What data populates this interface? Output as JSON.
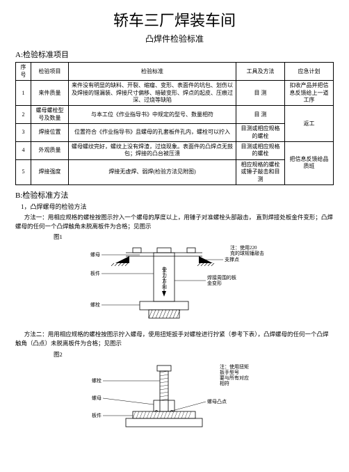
{
  "title_main": "轿车三厂焊装车间",
  "title_sub": "凸焊件检验标准",
  "section_a_header": "A:检验标准项目",
  "table": {
    "headers": [
      "序号",
      "检验项目",
      "检验标准",
      "工具及方法",
      "应急计划"
    ],
    "rows": [
      {
        "seq": "1",
        "item": "来件质量",
        "std": "来件没有明显的缺料、开裂、缩瘤、变形、表面件的坑包、划伤以及焊接的错漏装、焊接尺寸偏移、暗破变形、焊点的起皮、压痕过深、过烧等缺陷",
        "tool": "目  测",
        "plan": "扣收产品并把信息反馈给上一道工序"
      },
      {
        "seq": "2",
        "item": "螺母螺栓型号及数量",
        "std": "与本工位《作业指导书》中规定的型号、数量相符",
        "tool": "目  测",
        "plan": "返工"
      },
      {
        "seq": "3",
        "item": "焊接位置",
        "std": "位置符合《作业指导书》且螺母的孔套板件孔内，螺栓可以拧入",
        "tool": "目测或相应规格的螺栓",
        "plan": ""
      },
      {
        "seq": "4",
        "item": "外观质量",
        "std": "螺母螺纹完好，螺纹上没有焊渣，过烧现象。表面件的凸焊点无鼓包；焊接的凸台被压溃",
        "tool": "目测或相应规格的螺栓",
        "plan": "把信息反馈给品质班"
      },
      {
        "seq": "5",
        "item": "焊接强度",
        "std": "焊接无虚焊、弱焊(检验方法见附图)",
        "tool": "相应规格的螺栓或锤子敲击和目测",
        "plan": ""
      }
    ],
    "plan_merge": [
      {
        "start": 0,
        "span": 1
      },
      {
        "start": 1,
        "span": 2
      },
      {
        "start": 3,
        "span": 2
      }
    ]
  },
  "section_b_header": "B:检验标准方法",
  "method1_num": "1，凸焊螺母的检验方法",
  "method1_body": "方法一：用相应规格的螺栓按图示拧入一个螺母的厚度以上，用锤子对准螺栓头部敲击，  直到焊接处板金件变形；凸焊螺母的任何一个凸焊触角未脱离板件为合格；见图示",
  "fig1_label": "图1",
  "fig1": {
    "labels": {
      "nut": "螺母",
      "plate": "板件",
      "bolt": "螺栓",
      "force_dir": "受力方向",
      "support": "支撑点",
      "note_top": "注：使用220\n克的球规锤敲击",
      "note_right": "焊接周围的板\n金变形"
    },
    "colors": {
      "line": "#000000",
      "hatch": "#000000",
      "arrow_fill": "#000000"
    }
  },
  "method2_body": "方法二：用用相应规格的螺栓按图示拧入螺母，使用扭矩扳手对螺栓进行拧紧（参考下表），凸焊螺母的任何一个凸焊触角（凸点）未脱离板件为合格；见图示",
  "fig2_label": "图2",
  "fig2": {
    "labels": {
      "bolt": "螺栓",
      "nut": "螺母",
      "plate": "板件",
      "nut_point": "螺母凸点",
      "note_top": "注：使用扭矩\n扳手型号\n要与所有对应\n相符"
    },
    "colors": {
      "line": "#000000",
      "hatch": "#000000"
    }
  }
}
